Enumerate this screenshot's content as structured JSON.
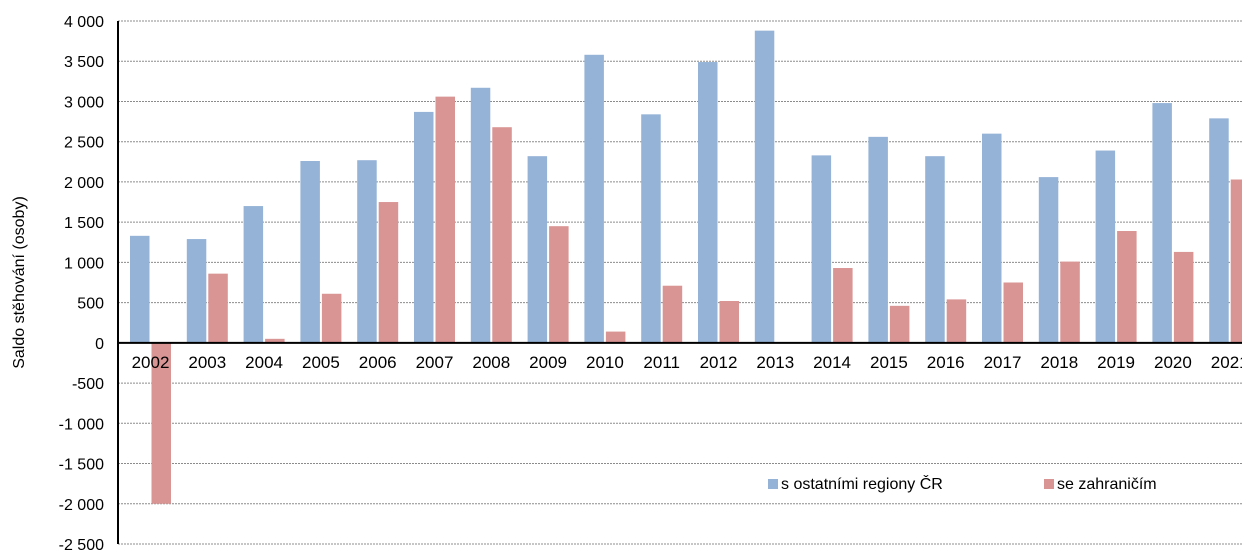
{
  "chart_data": {
    "type": "bar",
    "title": "",
    "xlabel": "",
    "ylabel": "Saldo stěhování (osoby)",
    "ylim": [
      -2500,
      4000
    ],
    "ytick_step": 500,
    "ytick_labels": [
      "-2 500",
      "-2 000",
      "-1 500",
      "-1 000",
      "-500",
      "0",
      "500",
      "1 000",
      "1 500",
      "2 000",
      "2 500",
      "3 000",
      "3 500",
      "4 000"
    ],
    "grid": true,
    "legend_position": "bottom-right",
    "categories": [
      "2002",
      "2003",
      "2004",
      "2005",
      "2006",
      "2007",
      "2008",
      "2009",
      "2010",
      "2011",
      "2012",
      "2013",
      "2014",
      "2015",
      "2016",
      "2017",
      "2018",
      "2019",
      "2020",
      "2021"
    ],
    "series": [
      {
        "name": "s ostatními regiony ČR",
        "color": "#95b3d7",
        "values": [
          1330,
          1290,
          1700,
          2260,
          2270,
          2870,
          3170,
          2320,
          3580,
          2840,
          3490,
          3880,
          2330,
          2560,
          2320,
          2600,
          2060,
          2390,
          2980,
          2790
        ]
      },
      {
        "name": "se zahraničím",
        "color": "#d99594",
        "values": [
          -2000,
          860,
          50,
          610,
          1750,
          3060,
          2680,
          1450,
          140,
          710,
          520,
          0,
          930,
          460,
          540,
          750,
          1010,
          1390,
          1130,
          2030
        ]
      }
    ]
  }
}
